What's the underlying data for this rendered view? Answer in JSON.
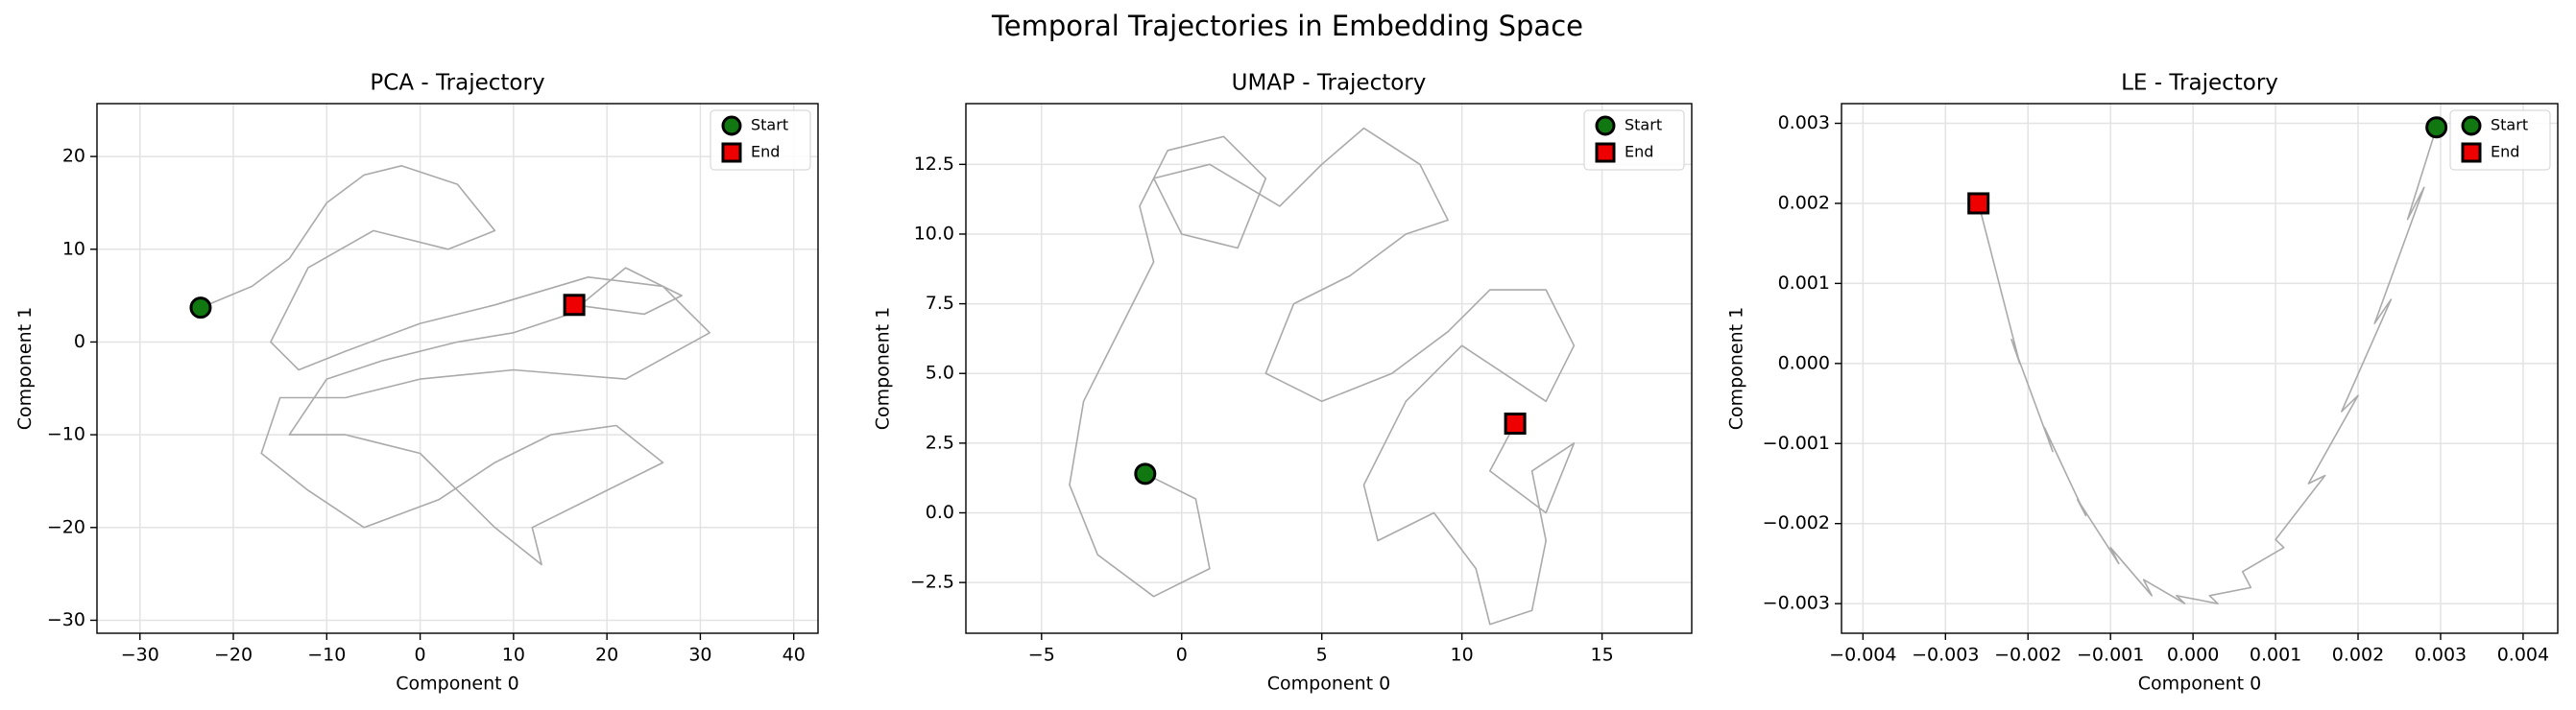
{
  "title": "Temporal Trajectories in Embedding Space",
  "chart_data": [
    {
      "type": "line",
      "title": "PCA - Trajectory",
      "x_label": "Component 0",
      "y_label": "Component 1",
      "xlim": [
        -34.6,
        42.6
      ],
      "ylim": [
        -31.4,
        25.7
      ],
      "xticks": [
        {
          "value": -30,
          "label": "−30"
        },
        {
          "value": -20,
          "label": "−20"
        },
        {
          "value": -10,
          "label": "−10"
        },
        0,
        10,
        20,
        30,
        40
      ],
      "yticks": [
        {
          "value": -30,
          "label": "−30"
        },
        {
          "value": -20,
          "label": "−20"
        },
        {
          "value": -10,
          "label": "−10"
        },
        0,
        10,
        20
      ],
      "grid": true,
      "legend": "upper right",
      "trajectory": {
        "color": "#aaaaaa",
        "x": [
          -23.5,
          -18,
          -14,
          -10,
          -6,
          -2,
          4,
          8,
          3,
          -5,
          -12,
          -16,
          -13,
          -8,
          0,
          8,
          18,
          26,
          31,
          22,
          10,
          0,
          -8,
          -15,
          -17,
          -12,
          -6,
          2,
          8,
          14,
          21,
          26,
          20,
          12,
          13,
          8,
          0,
          -8,
          -14,
          -10,
          -4,
          4,
          10,
          16,
          22,
          28,
          24,
          16.5
        ],
        "y": [
          3.7,
          6,
          9,
          15,
          18,
          19,
          17,
          12,
          10,
          12,
          8,
          0,
          -3,
          -1,
          2,
          4,
          7,
          6,
          1,
          -4,
          -3,
          -4,
          -6,
          -6,
          -12,
          -16,
          -20,
          -17,
          -13,
          -10,
          -9,
          -13,
          -16,
          -20,
          -24,
          -20,
          -12,
          -10,
          -10,
          -4,
          -2,
          0,
          1,
          3,
          8,
          5,
          3,
          4.0
        ]
      },
      "markers": [
        {
          "name": "Start",
          "shape": "circle",
          "color": "#117711",
          "x": -23.5,
          "y": 3.7
        },
        {
          "name": "End",
          "shape": "square",
          "color": "#ee0000",
          "x": 16.5,
          "y": 4.0
        }
      ]
    },
    {
      "type": "line",
      "title": "UMAP - Trajectory",
      "x_label": "Component 0",
      "y_label": "Component 1",
      "xlim": [
        -7.7,
        18.2
      ],
      "ylim": [
        -4.32,
        14.68
      ],
      "xticks": [
        {
          "value": -5,
          "label": "−5"
        },
        0,
        5,
        10,
        15
      ],
      "yticks": [
        {
          "value": -2.5,
          "label": "−2.5"
        },
        {
          "value": 0,
          "label": "0.0"
        },
        2.5,
        {
          "value": 5,
          "label": "5.0"
        },
        7.5,
        {
          "value": 10,
          "label": "10.0"
        },
        12.5
      ],
      "grid": true,
      "legend": "upper right",
      "trajectory": {
        "color": "#aaaaaa",
        "x": [
          -1.3,
          0.5,
          1,
          -1,
          -3,
          -4,
          -3.5,
          -2,
          -1,
          -1.5,
          -0.5,
          1.5,
          3,
          2,
          0,
          -1,
          1,
          3.5,
          5,
          6.5,
          8.5,
          9.5,
          8,
          6,
          4,
          3,
          5,
          7.5,
          9.5,
          11,
          13,
          14,
          13,
          11.5,
          10,
          8,
          6.5,
          7,
          9,
          10.5,
          11,
          12.5,
          13,
          12.5,
          14,
          13,
          11,
          11.9
        ],
        "y": [
          1.4,
          0.5,
          -2,
          -3,
          -1.5,
          1,
          4,
          7,
          9,
          11,
          13,
          13.5,
          12,
          9.5,
          10,
          12,
          12.5,
          11,
          12.5,
          13.8,
          12.5,
          10.5,
          10,
          8.5,
          7.5,
          5,
          4,
          5,
          6.5,
          8,
          8,
          6,
          4,
          5,
          6,
          4,
          1,
          -1,
          0,
          -2,
          -4,
          -3.5,
          -1,
          1.5,
          2.5,
          0,
          1.5,
          3.2
        ]
      },
      "markers": [
        {
          "name": "Start",
          "shape": "circle",
          "color": "#117711",
          "x": -1.3,
          "y": 1.4
        },
        {
          "name": "End",
          "shape": "square",
          "color": "#ee0000",
          "x": 11.9,
          "y": 3.2
        }
      ]
    },
    {
      "type": "line",
      "title": "LE - Trajectory",
      "x_label": "Component 0",
      "y_label": "Component 1",
      "xlim": [
        -0.00426,
        0.00442
      ],
      "ylim": [
        -0.00337,
        0.003246
      ],
      "xticks": [
        {
          "value": -0.004,
          "label": "−0.004"
        },
        {
          "value": -0.003,
          "label": "−0.003"
        },
        {
          "value": -0.002,
          "label": "−0.002"
        },
        {
          "value": -0.001,
          "label": "−0.001"
        },
        {
          "value": 0,
          "label": "0.000"
        },
        0.001,
        0.002,
        0.003,
        0.004
      ],
      "yticks": [
        {
          "value": -0.003,
          "label": "−0.003"
        },
        {
          "value": -0.002,
          "label": "−0.002"
        },
        {
          "value": -0.001,
          "label": "−0.001"
        },
        {
          "value": 0,
          "label": "0.000"
        },
        0.001,
        0.002,
        0.003
      ],
      "grid": true,
      "legend": "upper right",
      "trajectory": {
        "color": "#aaaaaa",
        "x": [
          0.00295,
          0.0026,
          0.0028,
          0.0022,
          0.0024,
          0.0018,
          0.002,
          0.0014,
          0.0016,
          0.001,
          0.0011,
          0.0006,
          0.0007,
          0.0002,
          0.0003,
          -0.0002,
          -0.0001,
          -0.0006,
          -0.0005,
          -0.001,
          -0.0009,
          -0.0014,
          -0.0013,
          -0.0018,
          -0.0017,
          -0.0022,
          -0.0021,
          -0.0026
        ],
        "y": [
          0.00295,
          0.0018,
          0.0022,
          0.0005,
          0.0008,
          -0.0006,
          -0.0004,
          -0.0015,
          -0.0014,
          -0.0022,
          -0.0023,
          -0.0026,
          -0.0028,
          -0.0029,
          -0.003,
          -0.0029,
          -0.003,
          -0.0027,
          -0.0029,
          -0.0023,
          -0.0025,
          -0.0017,
          -0.0019,
          -0.0008,
          -0.0011,
          0.0003,
          0,
          0.002
        ]
      },
      "markers": [
        {
          "name": "Start",
          "shape": "circle",
          "color": "#117711",
          "x": 0.00295,
          "y": 0.00295
        },
        {
          "name": "End",
          "shape": "square",
          "color": "#ee0000",
          "x": -0.0026,
          "y": 0.002
        }
      ]
    }
  ]
}
